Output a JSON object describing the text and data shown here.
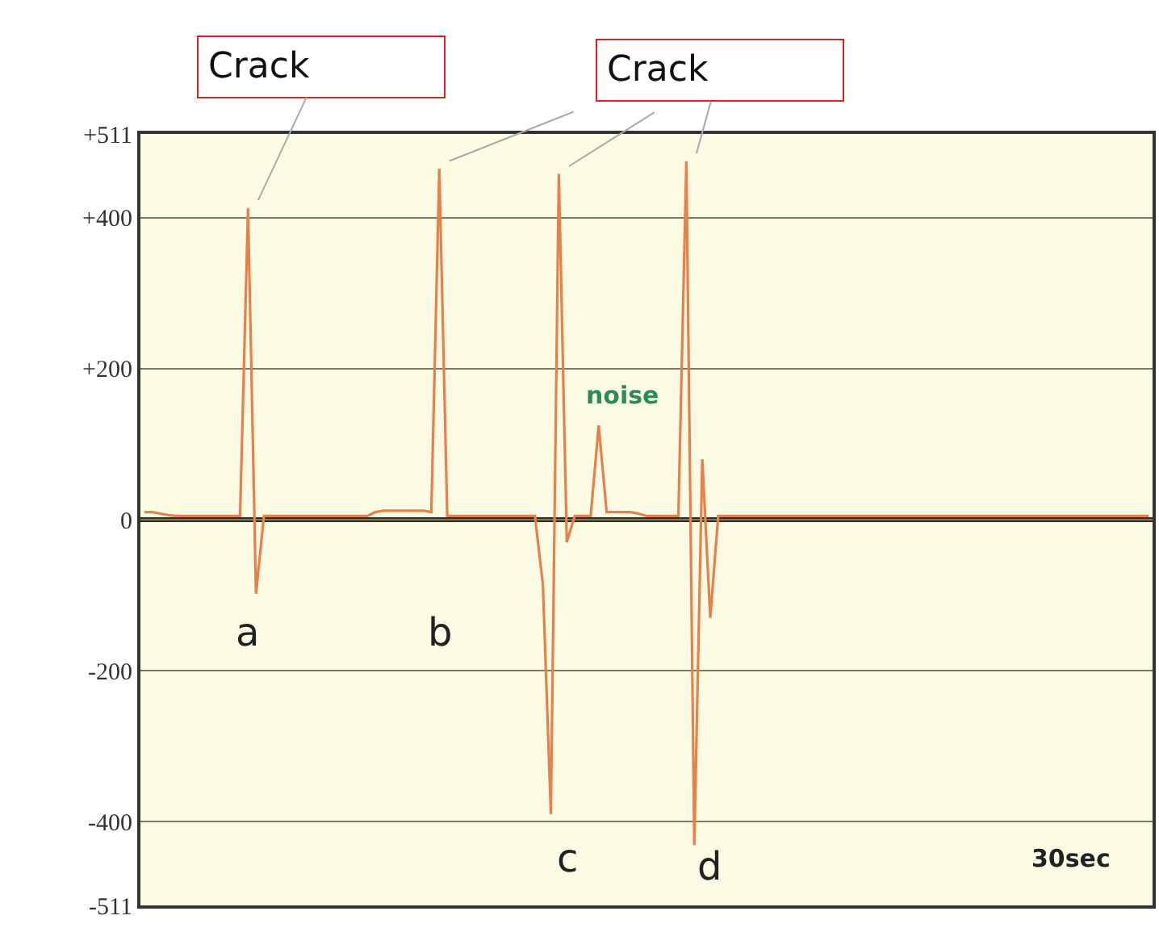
{
  "chart_data": {
    "type": "line",
    "categories": [
      null,
      null,
      null,
      null,
      null,
      null,
      null,
      null,
      null,
      null,
      null,
      null,
      null,
      null,
      null,
      null,
      null,
      null,
      null,
      null,
      null,
      null,
      null,
      null,
      null,
      null,
      null,
      null,
      null,
      null,
      null,
      null,
      null,
      null,
      null,
      null,
      null,
      null,
      null,
      null,
      null,
      null,
      null,
      null,
      null,
      null,
      null,
      null,
      null,
      null,
      null,
      null,
      null,
      null,
      null,
      null,
      null,
      null,
      null,
      null,
      null,
      null,
      null,
      null,
      null,
      null,
      null,
      null,
      null,
      null,
      null,
      null,
      null,
      null,
      null,
      null,
      null,
      null,
      null,
      null,
      null,
      null,
      null,
      null,
      null,
      null,
      null,
      null,
      null,
      null,
      null,
      null,
      null,
      null,
      null,
      null,
      null,
      null,
      null,
      null,
      null,
      null,
      null,
      null,
      null,
      null,
      null,
      null,
      null,
      null,
      null,
      null,
      null,
      null,
      null,
      null,
      null,
      null,
      null,
      null,
      null,
      null,
      null,
      null,
      null,
      null,
      null
    ],
    "series": [
      {
        "color": "#e8804a",
        "values": [
          10,
          10,
          8,
          6,
          5,
          5,
          5,
          5,
          5,
          5,
          5,
          5,
          5,
          413,
          -98,
          5,
          5,
          5,
          5,
          5,
          5,
          5,
          5,
          5,
          5,
          5,
          5,
          5,
          5,
          10,
          12,
          12,
          12,
          12,
          12,
          12,
          10,
          465,
          5,
          5,
          5,
          5,
          5,
          5,
          5,
          5,
          5,
          5,
          5,
          5,
          -86,
          -390,
          458,
          -30,
          5,
          5,
          5,
          125,
          10,
          10,
          10,
          10,
          8,
          5,
          5,
          5,
          5,
          5,
          475,
          -431,
          80,
          -130,
          5,
          5,
          5,
          5,
          5,
          5,
          5,
          5,
          5,
          5,
          5,
          5,
          5,
          5,
          5,
          5,
          5,
          5,
          5,
          5,
          5,
          5,
          5,
          5,
          5,
          5,
          5,
          5,
          5,
          5,
          5,
          5,
          5,
          5,
          5,
          5,
          5,
          5,
          5,
          5,
          5,
          5,
          5,
          5,
          5,
          5,
          5,
          5,
          5,
          5,
          5,
          5,
          5,
          5,
          5
        ]
      }
    ],
    "ylim": [
      -511,
      511
    ],
    "yticks": [
      {
        "value": 511,
        "label": "+511"
      },
      {
        "value": 400,
        "label": "+400"
      },
      {
        "value": 200,
        "label": "+200"
      },
      0,
      -200,
      -400,
      -511
    ],
    "ref_lines": [
      {
        "axis": "y",
        "value": 0,
        "color": "#3a2a1a"
      }
    ],
    "annotations": [
      "Crack",
      "Crack",
      "a",
      "b",
      "c",
      "d",
      "noise",
      "30sec"
    ],
    "grid": "y",
    "tick_labels": "y",
    "marker": "none",
    "line_style": "solid"
  }
}
